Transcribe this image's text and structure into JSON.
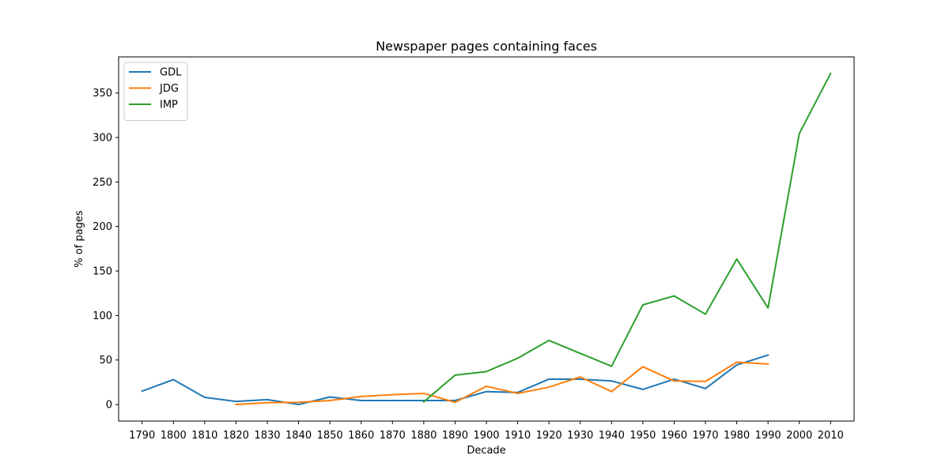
{
  "chart_data": {
    "type": "line",
    "title": "Newspaper pages containing faces",
    "xlabel": "Decade",
    "ylabel": "% of pages",
    "x": [
      1790,
      1800,
      1810,
      1820,
      1830,
      1840,
      1850,
      1860,
      1870,
      1880,
      1890,
      1900,
      1910,
      1920,
      1930,
      1940,
      1950,
      1960,
      1970,
      1980,
      1990,
      2000,
      2010
    ],
    "x_tick_labels": [
      "1790",
      "1800",
      "1810",
      "1820",
      "1830",
      "1840",
      "1850",
      "1860",
      "1870",
      "1880",
      "1890",
      "1900",
      "1910",
      "1920",
      "1930",
      "1940",
      "1950",
      "1960",
      "1970",
      "1980",
      "1990",
      "2000",
      "2010"
    ],
    "y_ticks": [
      0,
      50,
      100,
      150,
      200,
      250,
      300,
      350
    ],
    "y_tick_labels": [
      "0",
      "50",
      "100",
      "150",
      "200",
      "250",
      "300",
      "350"
    ],
    "xlim": [
      1782.5,
      2017.5
    ],
    "ylim": [
      -18.6,
      390.6
    ],
    "grid": false,
    "legend_placement": "top-left",
    "series": [
      {
        "name": "GDL",
        "color": "#1f77b4",
        "x": [
          1790,
          1800,
          1810,
          1820,
          1830,
          1840,
          1850,
          1860,
          1870,
          1880,
          1890,
          1900,
          1910,
          1920,
          1930,
          1940,
          1950,
          1960,
          1970,
          1980,
          1990
        ],
        "values": [
          15,
          28,
          8,
          3.5,
          5.5,
          0,
          8.5,
          4.5,
          4.5,
          4.5,
          4.5,
          14.5,
          13.5,
          28.5,
          28.5,
          26.5,
          17,
          28.5,
          18,
          44.5,
          55.5
        ]
      },
      {
        "name": "JDG",
        "color": "#ff7f0e",
        "x": [
          1820,
          1830,
          1840,
          1850,
          1860,
          1870,
          1880,
          1890,
          1900,
          1910,
          1920,
          1930,
          1940,
          1950,
          1960,
          1970,
          1980,
          1990
        ],
        "values": [
          0,
          2,
          2.5,
          4.5,
          9,
          11,
          12.5,
          2.5,
          20.5,
          12.5,
          19.5,
          31,
          14.5,
          42.5,
          26.5,
          26,
          47.5,
          45.5
        ]
      },
      {
        "name": "IMP",
        "color": "#2ca02c",
        "x": [
          1880,
          1890,
          1900,
          1910,
          1920,
          1930,
          1940,
          1950,
          1960,
          1970,
          1980,
          1990,
          2000,
          2010
        ],
        "values": [
          3,
          33,
          37,
          52,
          72,
          57.5,
          43,
          112,
          122,
          101.5,
          163.5,
          108.5,
          304.5,
          372
        ]
      }
    ]
  }
}
